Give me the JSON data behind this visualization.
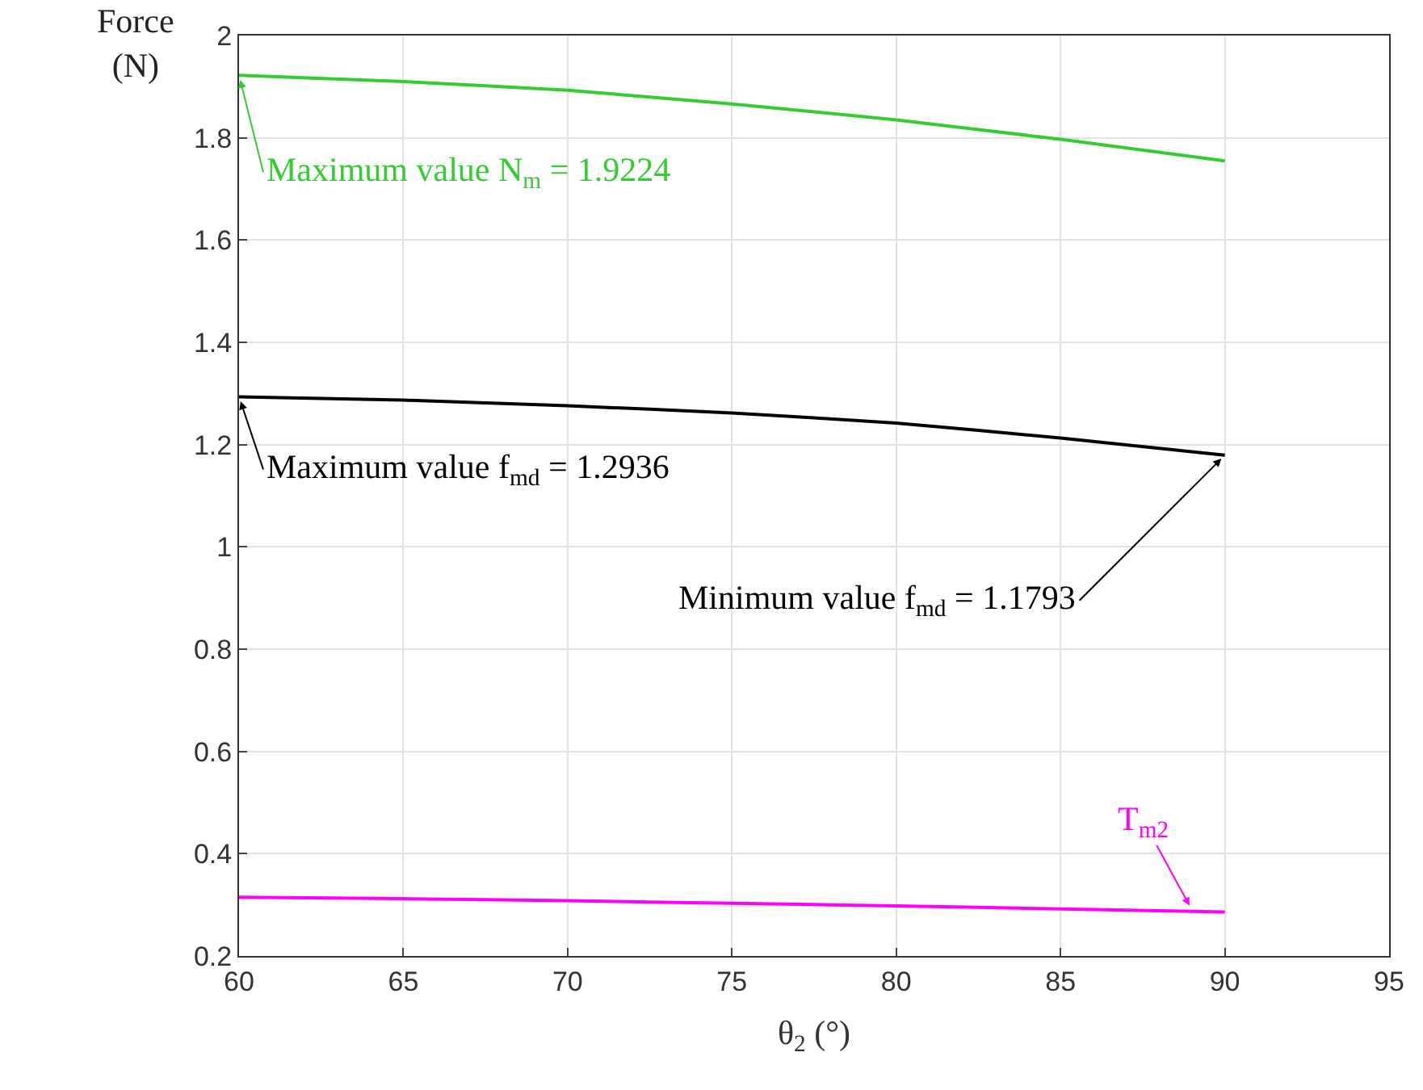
{
  "chart_data": {
    "type": "line",
    "xlabel": "θ$_{2}$ (°)",
    "ylabel": "Force (N)",
    "x": [
      60,
      65,
      70,
      75,
      80,
      85,
      90
    ],
    "series": [
      {
        "color": "#33cc33",
        "values": [
          1.9224,
          1.91,
          1.893,
          1.866,
          1.835,
          1.797,
          1.755
        ]
      },
      {
        "color": "#000000",
        "values": [
          1.2936,
          1.287,
          1.276,
          1.262,
          1.242,
          1.213,
          1.1793
        ]
      },
      {
        "color": "#ff00ff",
        "values": [
          0.315,
          0.312,
          0.308,
          0.303,
          0.298,
          0.292,
          0.286
        ]
      }
    ],
    "xlim": [
      60,
      95
    ],
    "xticks": [
      60,
      65,
      70,
      75,
      80,
      85,
      90,
      95
    ],
    "ylim": [
      0.2,
      2
    ],
    "yticks": [
      0.2,
      0.4,
      0.6,
      0.8,
      1,
      1.2,
      1.4,
      1.6,
      1.8,
      2
    ],
    "grid": true,
    "marker": "none",
    "line_style": "solid",
    "annotations": [
      {
        "text": "Maximum value N$_{m}$ = 1.9224",
        "x": 60,
        "y": 1.9224
      },
      {
        "text": "Maximum value f$_{md}$ = 1.2936",
        "x": 60,
        "y": 1.2936
      },
      {
        "text": "Minimum value f$_{md}$ = 1.1793",
        "x": 90,
        "y": 1.1793
      },
      {
        "text": "T$_{m2}$",
        "x": 89,
        "y": 0.29
      }
    ]
  }
}
